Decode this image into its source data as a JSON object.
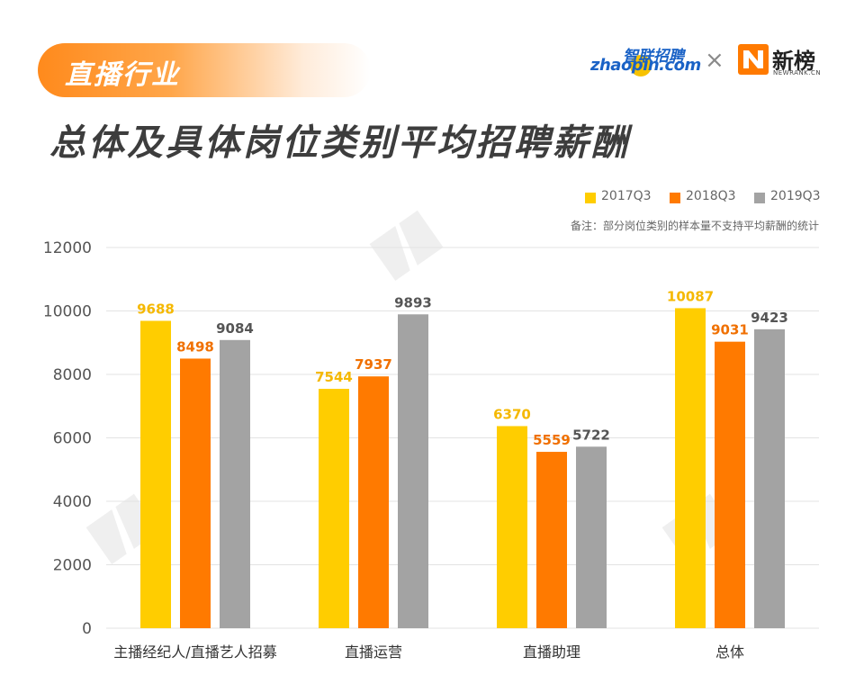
{
  "header": {
    "tag": "直播行业",
    "title": "总体及具体岗位类别平均招聘薪酬"
  },
  "logos": {
    "zhaopin_top": "智联招聘",
    "zhaopin_main": "zhaopin.com",
    "cross": "×",
    "newrank_name": "新榜",
    "newrank_sub": "NEWRANK.CN"
  },
  "note": "备注：部分岗位类别的样本量不支持平均薪酬的统计",
  "colors": {
    "tag_accent": "#ff8a1c",
    "title": "#3d3d3d",
    "zhaopin_blue": "#1a62c6",
    "newrank_orange": "#ff7a00"
  },
  "chart_data": {
    "type": "bar",
    "categories": [
      "主播经纪人/直播艺人招募",
      "直播运营",
      "直播助理",
      "总体"
    ],
    "series": [
      {
        "name": "2017Q3",
        "color": "#ffcd00",
        "label_color": "#f5b800",
        "values": [
          9688,
          7544,
          6370,
          10087
        ]
      },
      {
        "name": "2018Q3",
        "color": "#ff7a00",
        "label_color": "#f07000",
        "values": [
          8498,
          7937,
          5559,
          9031
        ]
      },
      {
        "name": "2019Q3",
        "color": "#a3a3a3",
        "label_color": "#555555",
        "values": [
          9084,
          9893,
          5722,
          9423
        ]
      }
    ],
    "yticks": [
      "0",
      "2000",
      "4000",
      "6000",
      "8000",
      "10000",
      "12000"
    ],
    "ylim": [
      0,
      12000
    ],
    "grid": true,
    "legend_position": "top-right"
  }
}
